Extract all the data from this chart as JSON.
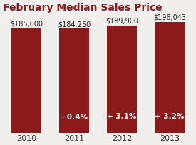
{
  "title": "February Median Sales Price",
  "categories": [
    "2010",
    "2011",
    "2012",
    "2013"
  ],
  "values": [
    185000,
    184250,
    189900,
    196043
  ],
  "price_labels": [
    "$185,000",
    "$184,250",
    "$189,900",
    "$196,043"
  ],
  "pct_labels": [
    "",
    "- 0.4%",
    "+ 3.1%",
    "+ 3.2%"
  ],
  "bar_color": "#8B1A1A",
  "background_color": "#F0EFED",
  "title_color": "#8B1A1A",
  "label_color_top": "#222222",
  "label_color_inside": "#ffffff",
  "ylim_min": 0,
  "ylim_max": 205000,
  "title_fontsize": 10,
  "tick_fontsize": 8,
  "price_fontsize": 7,
  "pct_fontsize": 7.5
}
